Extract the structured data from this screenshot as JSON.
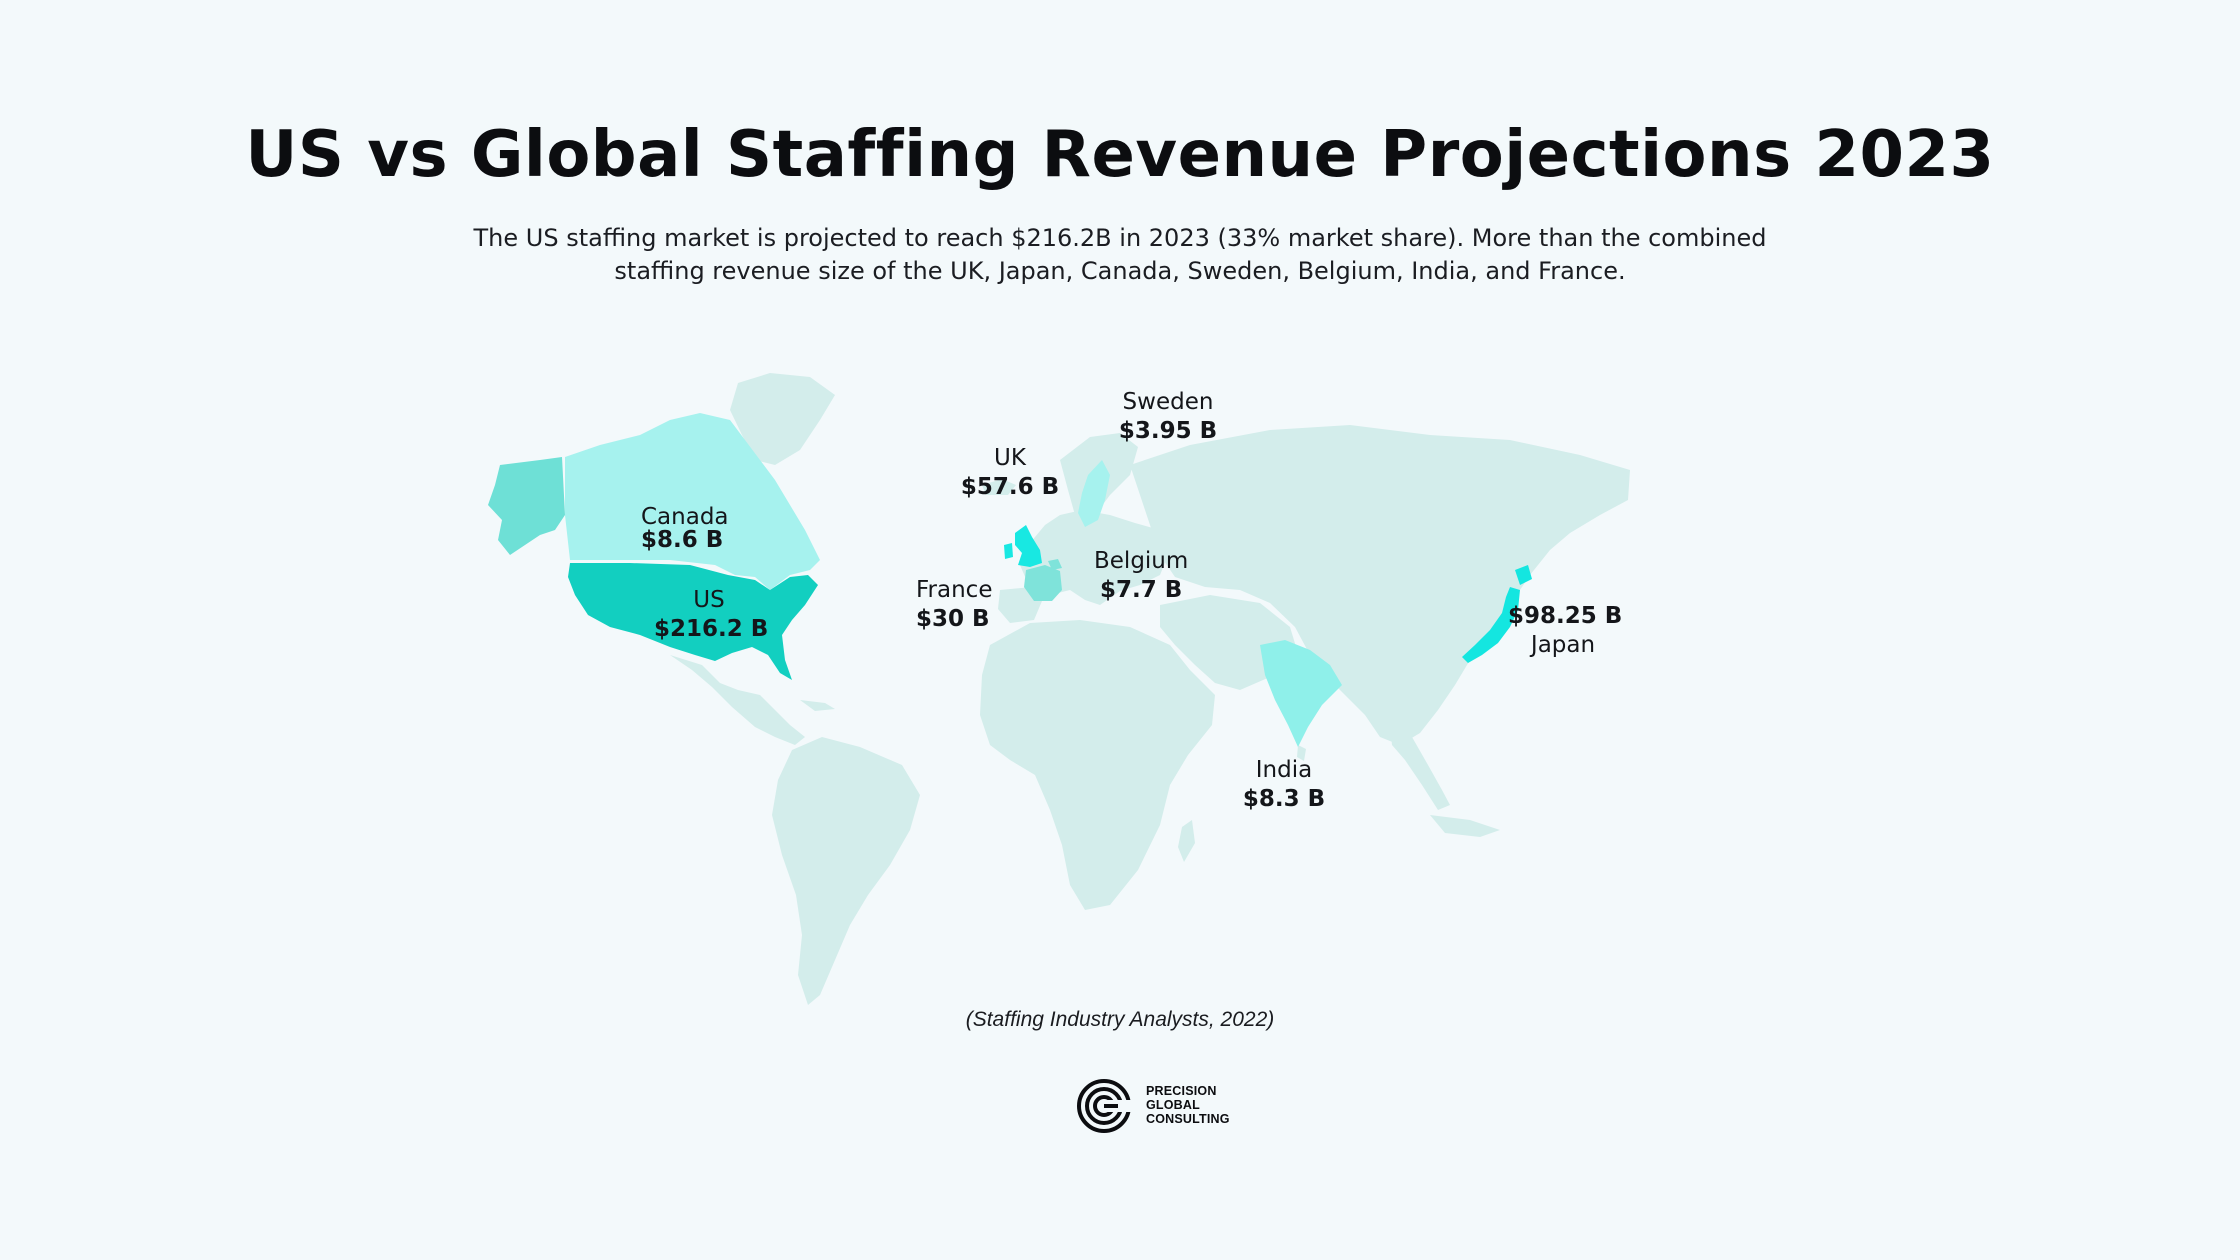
{
  "title": "US vs Global Staffing Revenue Projections 2023",
  "subtitle_line1": "The US staffing market is projected to reach $216.2B in 2023 (33% market share). More than the combined",
  "subtitle_line2": "staffing revenue size of the UK, Japan, Canada, Sweden, Belgium, India, and France.",
  "colors": {
    "background": "#f3f9fb",
    "land_default": "#d3edeb",
    "us": "#12cfc0",
    "alaska": "#6ee0d6",
    "canada": "#a6f2ee",
    "japan": "#14e6e0",
    "uk": "#18e8e2",
    "india": "#8ff0ea",
    "sweden": "#a6f2ee",
    "france": "#7fe3da",
    "belgium": "#7fe3da"
  },
  "map_data": {
    "countries": [
      {
        "id": "us",
        "name": "US",
        "value": "$216.2 B"
      },
      {
        "id": "japan",
        "name": "Japan",
        "value": "$98.25 B"
      },
      {
        "id": "uk",
        "name": "UK",
        "value": "$57.6 B"
      },
      {
        "id": "france",
        "name": "France",
        "value": "$30 B"
      },
      {
        "id": "canada",
        "name": "Canada",
        "value": "$8.6 B"
      },
      {
        "id": "india",
        "name": "India",
        "value": "$8.3 B"
      },
      {
        "id": "belgium",
        "name": "Belgium",
        "value": "$7.7 B"
      },
      {
        "id": "sweden",
        "name": "Sweden",
        "value": "$3.95 B"
      }
    ]
  },
  "source": "(Staffing Industry Analysts, 2022)",
  "logo": {
    "line1": "PRECISION",
    "line2": "GLOBAL",
    "line3": "CONSULTING",
    "icon": "pgc-logo-icon"
  }
}
